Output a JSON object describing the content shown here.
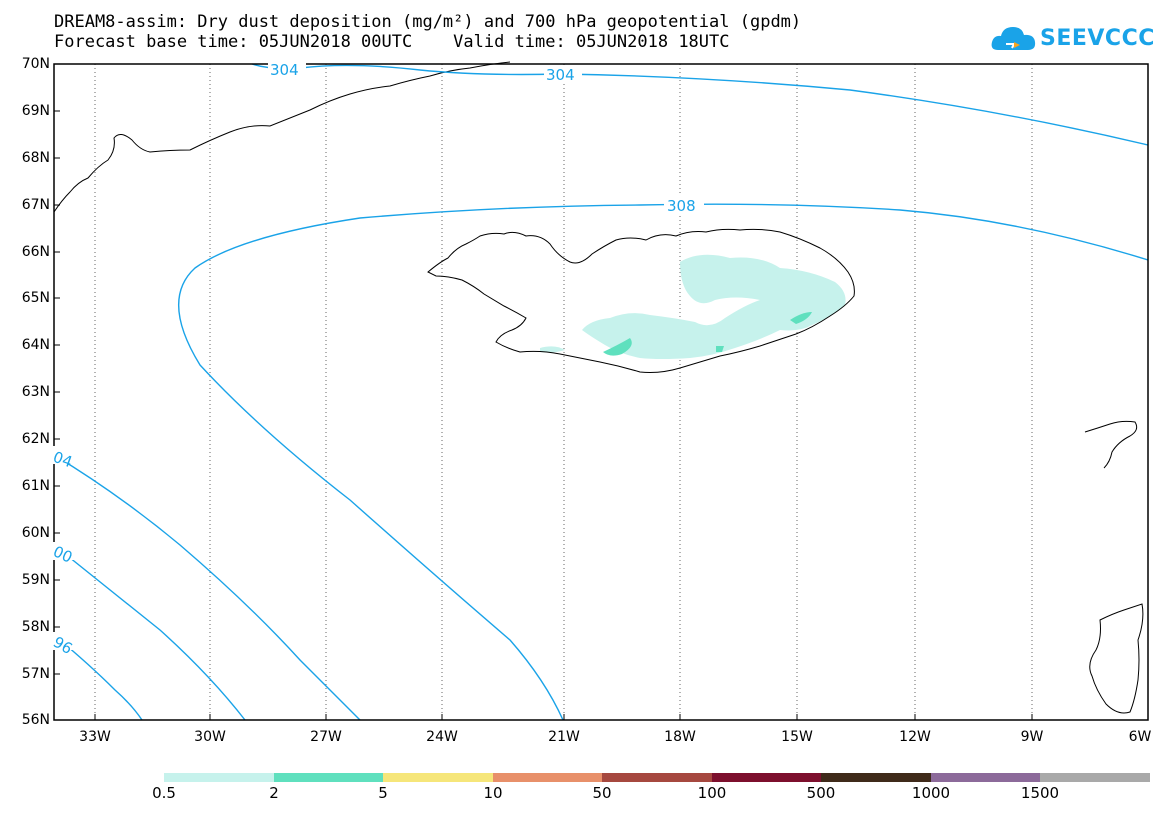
{
  "title": {
    "line1": "DREAM8-assim: Dry dust deposition (mg/m²) and 700 hPa geopotential (gpdm)",
    "line2": "Forecast base time: 05JUN2018 00UTC    Valid time: 05JUN2018 18UTC"
  },
  "logo": {
    "text": "SEEVCCC",
    "icon": "cloud-icon",
    "color": "#1aa3e8"
  },
  "map": {
    "lat_labels": [
      "70N",
      "69N",
      "68N",
      "67N",
      "66N",
      "65N",
      "64N",
      "63N",
      "62N",
      "61N",
      "60N",
      "59N",
      "58N",
      "57N",
      "56N"
    ],
    "lon_labels": [
      "33W",
      "30W",
      "27W",
      "24W",
      "21W",
      "18W",
      "15W",
      "12W",
      "9W",
      "6W"
    ],
    "contour_labels": [
      "304",
      "304",
      "308",
      "04",
      "00",
      "96"
    ],
    "contour_color": "#1aa3e8",
    "dust_colors": {
      "light": "#c6f2ec",
      "medium": "#5fe0be"
    }
  },
  "colorbar": {
    "labels": [
      "0.5",
      "2",
      "5",
      "10",
      "50",
      "100",
      "500",
      "1000",
      "1500"
    ],
    "colors": [
      "#c6f2ec",
      "#5fe0be",
      "#f6e67a",
      "#e8906a",
      "#a6483f",
      "#7d0f2d",
      "#3f2a1a",
      "#8c6a9a",
      "#a9a9a9"
    ]
  }
}
